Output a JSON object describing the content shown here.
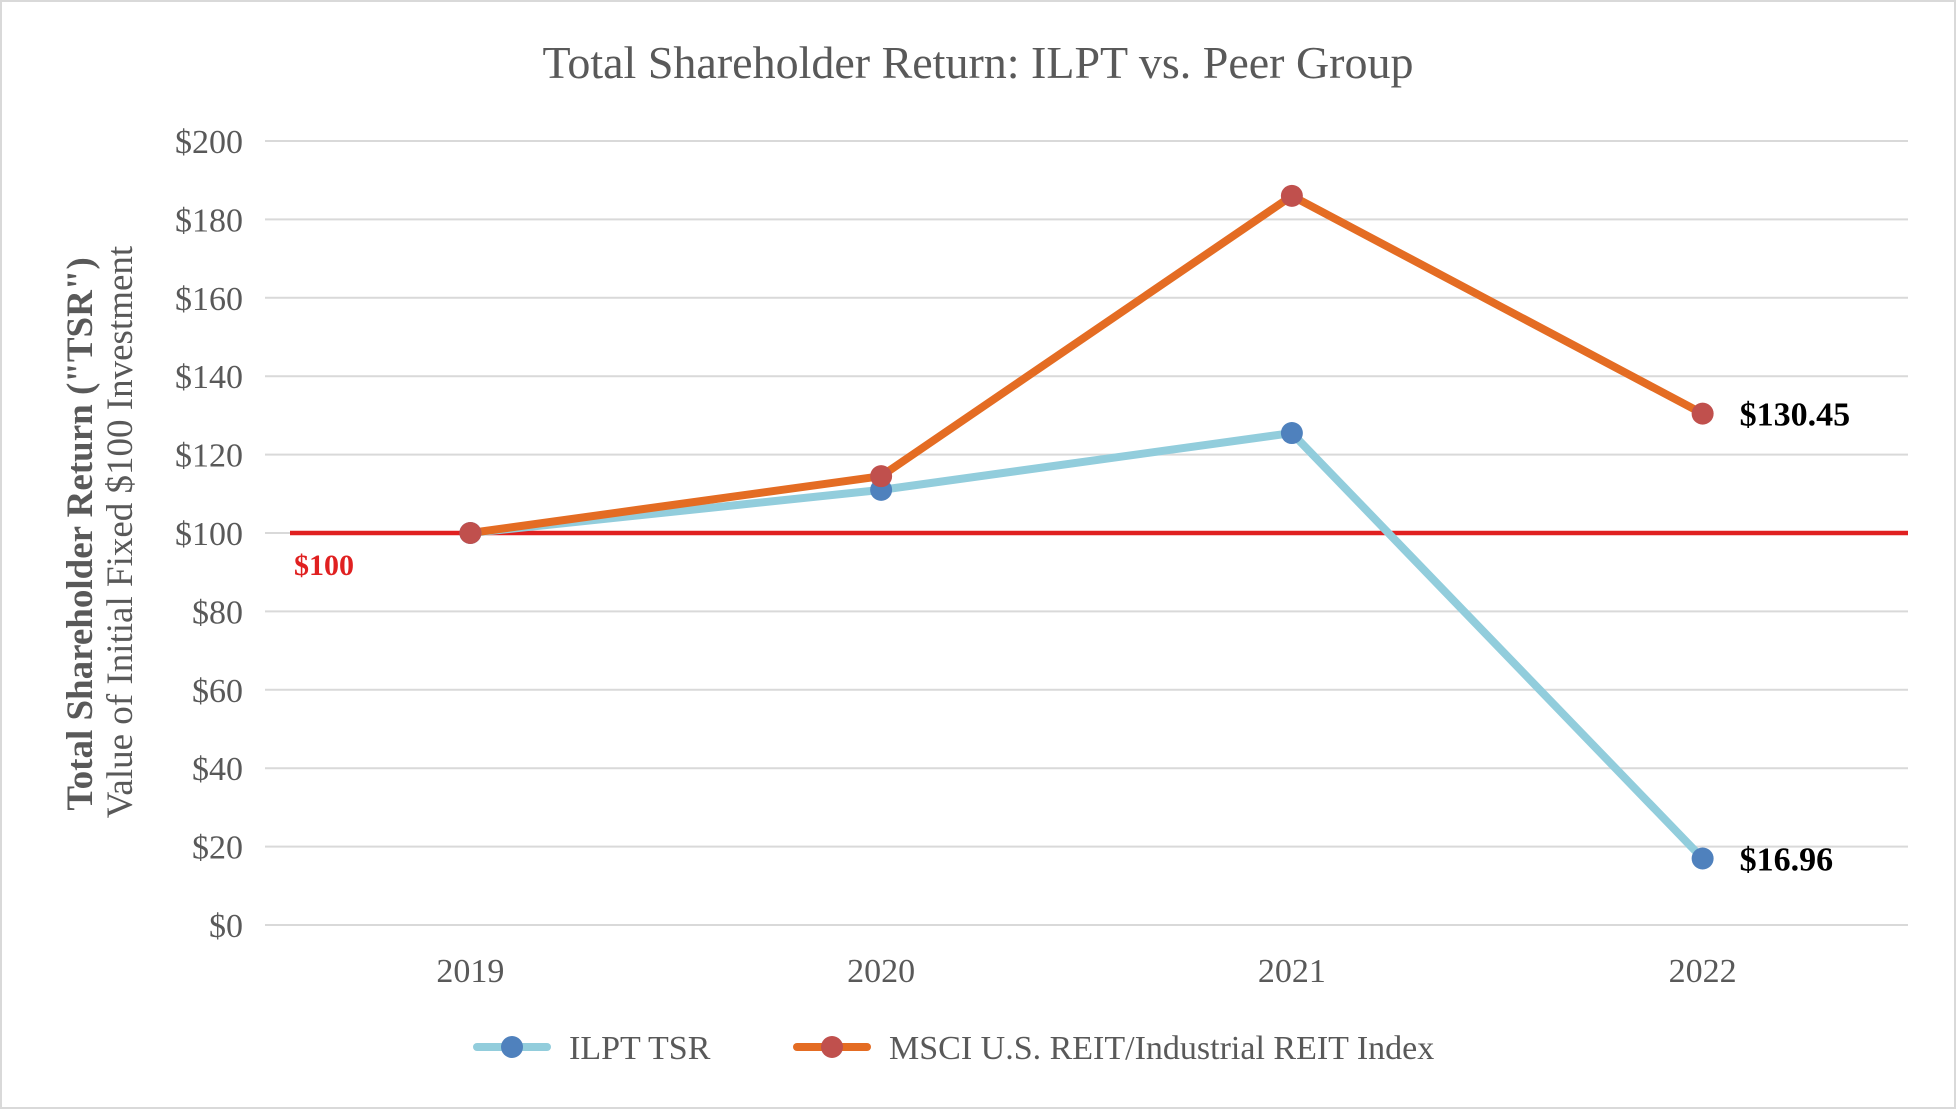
{
  "chart_data": {
    "type": "line",
    "title": "Total Shareholder Return: ILPT vs. Peer Group",
    "ylabel_bold": "Total Shareholder Return (\"TSR\")",
    "ylabel": "Value of Initial Fixed $100 Investment",
    "xlabel": "",
    "categories": [
      "2019",
      "2020",
      "2021",
      "2022"
    ],
    "ylim": [
      0,
      200
    ],
    "y_ticks": [
      0,
      20,
      40,
      60,
      80,
      100,
      120,
      140,
      160,
      180,
      200
    ],
    "y_tick_labels": [
      "$0",
      "$20",
      "$40",
      "$60",
      "$80",
      "$100",
      "$120",
      "$140",
      "$160",
      "$180",
      "$200"
    ],
    "grid": true,
    "legend_position": "bottom-center",
    "series": [
      {
        "name": "ILPT TSR",
        "values": [
          100,
          111,
          125.5,
          16.96
        ],
        "line_color": "#92cddc",
        "marker_color": "#4f81bd",
        "end_label": "$16.96"
      },
      {
        "name": "MSCI U.S. REIT/Industrial REIT Index",
        "values": [
          100,
          114.5,
          186,
          130.45
        ],
        "line_color": "#e46c23",
        "marker_color": "#c0504d",
        "end_label": "$130.45"
      }
    ],
    "reference_line": {
      "value": 100,
      "label": "$100",
      "color": "#e02020"
    }
  },
  "colors": {
    "grid": "#d9d9d9",
    "text": "#595959",
    "frame": "#d9d9d9"
  }
}
